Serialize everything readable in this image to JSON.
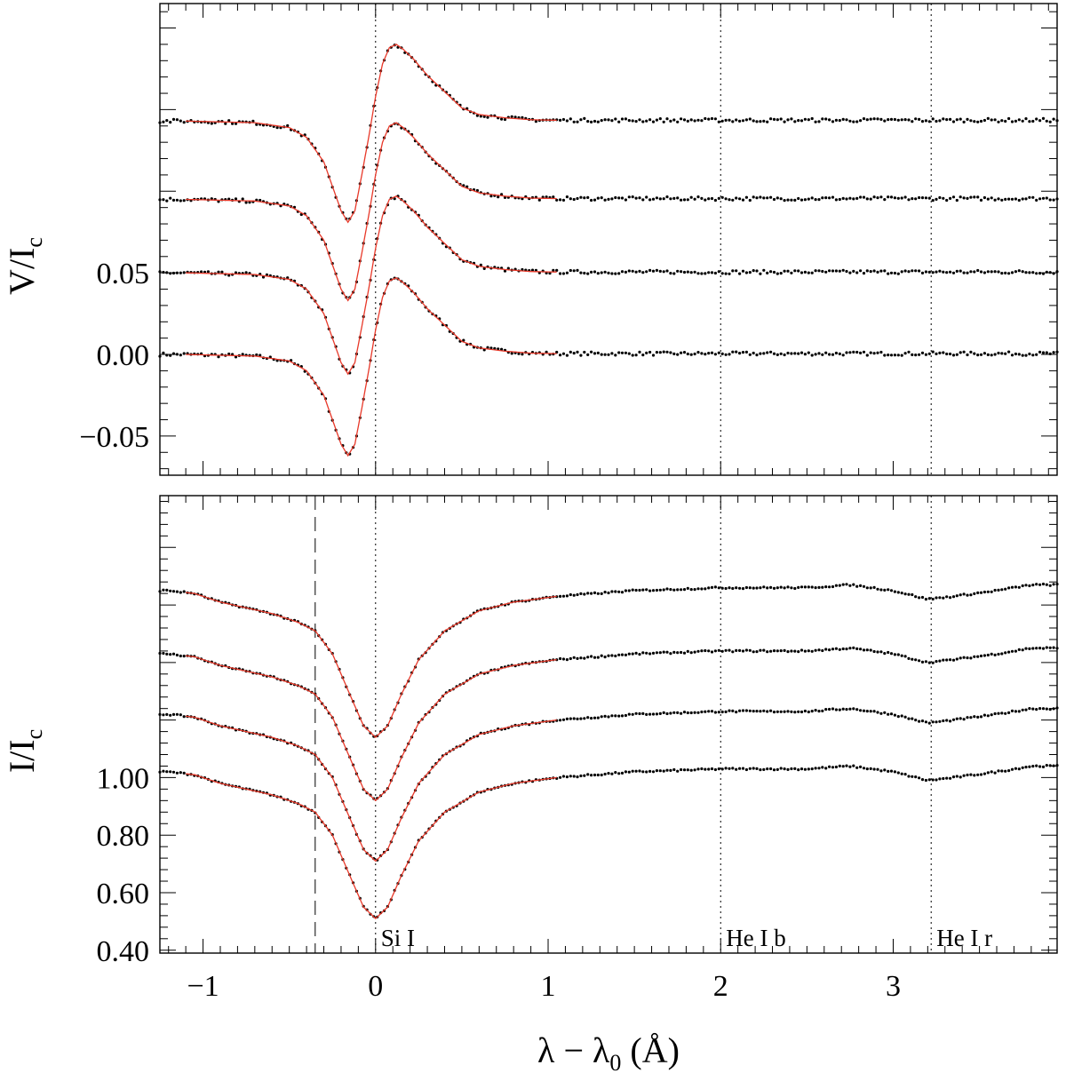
{
  "chart_data": [
    {
      "panel": "stokes-v",
      "type": "scatter",
      "ylabel": {
        "main": "V/I",
        "sub": "c"
      },
      "xlim": [
        -1.25,
        3.95
      ],
      "ylim": [
        -0.074,
        0.215
      ],
      "yticks": [
        {
          "value": 0.05,
          "label": "0.05"
        },
        {
          "value": 0.0,
          "label": "0.00"
        },
        {
          "value": -0.05,
          "label": "−0.05"
        }
      ],
      "grid": false,
      "legend": "none",
      "colors": {
        "observed": "#000000",
        "fit": "#e8392a"
      },
      "series_offsets": [
        0.0,
        0.05,
        0.095,
        0.143
      ],
      "profile": {
        "x": [
          -1.1,
          -0.7,
          -0.5,
          -0.4,
          -0.3,
          -0.25,
          -0.2,
          -0.16,
          -0.12,
          -0.08,
          -0.04,
          0.0,
          0.04,
          0.08,
          0.12,
          0.16,
          0.22,
          0.3,
          0.4,
          0.5,
          0.6,
          0.75,
          0.9,
          1.05
        ],
        "values": [
          0.0,
          -0.001,
          -0.004,
          -0.01,
          -0.025,
          -0.04,
          -0.055,
          -0.062,
          -0.055,
          -0.033,
          -0.01,
          0.015,
          0.035,
          0.045,
          0.047,
          0.044,
          0.038,
          0.028,
          0.018,
          0.008,
          0.004,
          0.002,
          0.0008,
          0.0005
        ]
      },
      "observed_x_range": [
        -1.25,
        3.95
      ],
      "fit_x_range": [
        -1.1,
        1.05
      ]
    },
    {
      "panel": "stokes-i",
      "type": "scatter",
      "ylabel": {
        "main": "I/I",
        "sub": "c"
      },
      "xlabel": {
        "main": "λ − λ",
        "sub": "0",
        "unit": " (Å)"
      },
      "xlim": [
        -1.25,
        3.95
      ],
      "ylim": [
        0.39,
        1.98
      ],
      "yticks": [
        {
          "value": 1.0,
          "label": "1.00"
        },
        {
          "value": 0.8,
          "label": "0.80"
        },
        {
          "value": 0.6,
          "label": "0.60"
        },
        {
          "value": 0.4,
          "label": "0.40"
        }
      ],
      "xticks": [
        {
          "value": -1,
          "label": "−1"
        },
        {
          "value": 0,
          "label": "0"
        },
        {
          "value": 1,
          "label": "1"
        },
        {
          "value": 2,
          "label": "2"
        },
        {
          "value": 3,
          "label": "3"
        }
      ],
      "grid": false,
      "legend": "none",
      "colors": {
        "observed": "#000000",
        "fit": "#e8392a"
      },
      "series_offsets": [
        0.0,
        0.2,
        0.41,
        0.63
      ],
      "profile": {
        "x": [
          -1.2,
          -1.05,
          -0.9,
          -0.75,
          -0.6,
          -0.45,
          -0.35,
          -0.25,
          -0.15,
          -0.07,
          0.0,
          0.07,
          0.15,
          0.25,
          0.4,
          0.6,
          0.8,
          1.05,
          1.5,
          2.0,
          2.5,
          2.75,
          3.0,
          3.2,
          3.35,
          3.6,
          3.8,
          3.95
        ],
        "values": [
          1.02,
          1.01,
          0.98,
          0.96,
          0.94,
          0.91,
          0.88,
          0.8,
          0.66,
          0.55,
          0.51,
          0.55,
          0.66,
          0.78,
          0.88,
          0.95,
          0.98,
          1.0,
          1.02,
          1.03,
          1.03,
          1.04,
          1.02,
          0.99,
          1.0,
          1.02,
          1.04,
          1.04
        ]
      },
      "observed_x_range": [
        -1.25,
        3.95
      ],
      "fit_x_range": [
        -1.1,
        1.05
      ]
    }
  ],
  "reference_lines": [
    {
      "x": 0.0,
      "label": "Si I",
      "style": "dotted"
    },
    {
      "x": 2.0,
      "label": "He I b",
      "style": "dotted"
    },
    {
      "x": 3.22,
      "label": "He I r",
      "style": "dotted"
    },
    {
      "x": -0.35,
      "label": "",
      "style": "dashed",
      "panel": "stokes-i"
    }
  ]
}
